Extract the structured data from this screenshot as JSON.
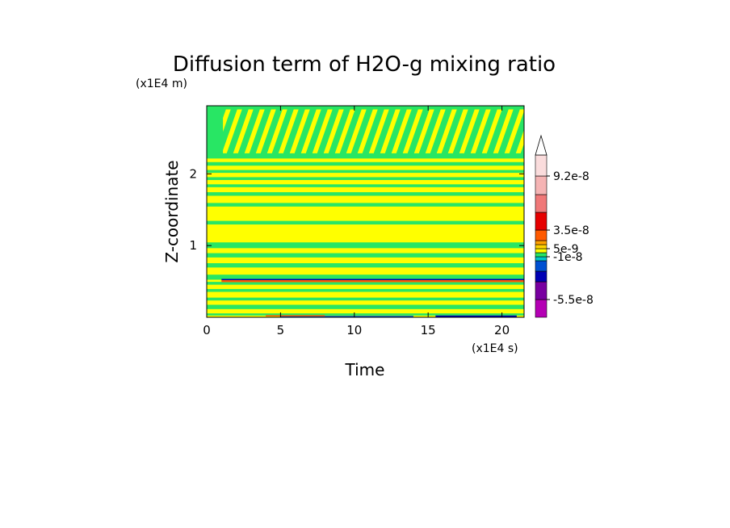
{
  "chart_data": {
    "type": "heatmap",
    "title": "Diffusion term of H2O-g mixing ratio",
    "xlabel": "Time",
    "ylabel": "Z-coordinate",
    "x_unit": "(x1E4 s)",
    "y_unit": "(x1E4 m)",
    "xlim": [
      0,
      21.5
    ],
    "ylim": [
      0,
      2.95
    ],
    "x_ticks": [
      0,
      5,
      10,
      15,
      20
    ],
    "y_ticks": [
      1,
      2
    ],
    "x_tick_labels": [
      "0",
      "5",
      "10",
      "15",
      "20"
    ],
    "y_tick_labels": [
      "1",
      "2"
    ],
    "colorbar": {
      "colors": [
        "#b400b4",
        "#7800a0",
        "#0000b4",
        "#0050d2",
        "#00c8c8",
        "#28e664",
        "#ffff00",
        "#ffd200",
        "#ffa000",
        "#ff5a00",
        "#e60000",
        "#f07878",
        "#f5b4b4",
        "#fadcdc"
      ],
      "tick_labels": [
        "-5.5e-8",
        "-1e-8",
        "5e-9",
        "3.5e-8",
        "9.2e-8"
      ],
      "tick_levels": [
        1,
        5,
        7,
        10,
        13
      ]
    },
    "bands": [
      {
        "y0": 0.0,
        "y1": 0.03,
        "c": 6
      },
      {
        "y0": 0.03,
        "y1": 0.06,
        "c": 5
      },
      {
        "y0": 0.06,
        "y1": 0.12,
        "c": 6
      },
      {
        "y0": 0.12,
        "y1": 0.18,
        "c": 5
      },
      {
        "y0": 0.18,
        "y1": 0.24,
        "c": 6
      },
      {
        "y0": 0.24,
        "y1": 0.28,
        "c": 5
      },
      {
        "y0": 0.28,
        "y1": 0.36,
        "c": 6
      },
      {
        "y0": 0.36,
        "y1": 0.4,
        "c": 5
      },
      {
        "y0": 0.4,
        "y1": 0.46,
        "c": 6
      },
      {
        "y0": 0.46,
        "y1": 0.5,
        "c": 5
      },
      {
        "y0": 0.5,
        "y1": 0.53,
        "c": 6
      },
      {
        "y0": 0.53,
        "y1": 0.6,
        "c": 5
      },
      {
        "y0": 0.6,
        "y1": 0.7,
        "c": 6
      },
      {
        "y0": 0.7,
        "y1": 0.76,
        "c": 5
      },
      {
        "y0": 0.76,
        "y1": 0.84,
        "c": 6
      },
      {
        "y0": 0.84,
        "y1": 0.9,
        "c": 5
      },
      {
        "y0": 0.9,
        "y1": 0.97,
        "c": 6
      },
      {
        "y0": 0.97,
        "y1": 1.05,
        "c": 5
      },
      {
        "y0": 1.05,
        "y1": 1.3,
        "c": 6
      },
      {
        "y0": 1.3,
        "y1": 1.35,
        "c": 5
      },
      {
        "y0": 1.35,
        "y1": 1.55,
        "c": 6
      },
      {
        "y0": 1.55,
        "y1": 1.6,
        "c": 5
      },
      {
        "y0": 1.6,
        "y1": 1.7,
        "c": 6
      },
      {
        "y0": 1.7,
        "y1": 1.75,
        "c": 5
      },
      {
        "y0": 1.75,
        "y1": 1.82,
        "c": 6
      },
      {
        "y0": 1.82,
        "y1": 1.86,
        "c": 5
      },
      {
        "y0": 1.86,
        "y1": 1.92,
        "c": 6
      },
      {
        "y0": 1.92,
        "y1": 1.96,
        "c": 5
      },
      {
        "y0": 1.96,
        "y1": 2.02,
        "c": 6
      },
      {
        "y0": 2.02,
        "y1": 2.06,
        "c": 5
      },
      {
        "y0": 2.06,
        "y1": 2.12,
        "c": 6
      },
      {
        "y0": 2.12,
        "y1": 2.17,
        "c": 5
      },
      {
        "y0": 2.17,
        "y1": 2.22,
        "c": 6
      },
      {
        "y0": 2.22,
        "y1": 2.95,
        "c": 5
      }
    ],
    "features": [
      {
        "x0": 1.0,
        "x1": 21.5,
        "y0": 0.49,
        "y1": 0.52,
        "c": 9
      },
      {
        "x0": 1.0,
        "x1": 21.5,
        "y0": 0.52,
        "y1": 0.535,
        "c": 2
      },
      {
        "x0": 5.0,
        "x1": 14.0,
        "y0": 0.0,
        "y1": 0.02,
        "c": 3
      },
      {
        "x0": 15.5,
        "x1": 21.0,
        "y0": 0.0,
        "y1": 0.025,
        "c": 2
      },
      {
        "x0": 4.0,
        "x1": 8.0,
        "y0": 0.02,
        "y1": 0.03,
        "c": 9
      }
    ],
    "upper_pattern": {
      "y0": 2.22,
      "y1": 2.9,
      "x0": 1.3,
      "x1": 21.5,
      "slant": -0.9,
      "colors": [
        6,
        5
      ]
    },
    "left_strip": {
      "x0": 0.0,
      "x1": 1.1,
      "y0": 2.22,
      "y1": 2.95,
      "c": 5
    }
  }
}
